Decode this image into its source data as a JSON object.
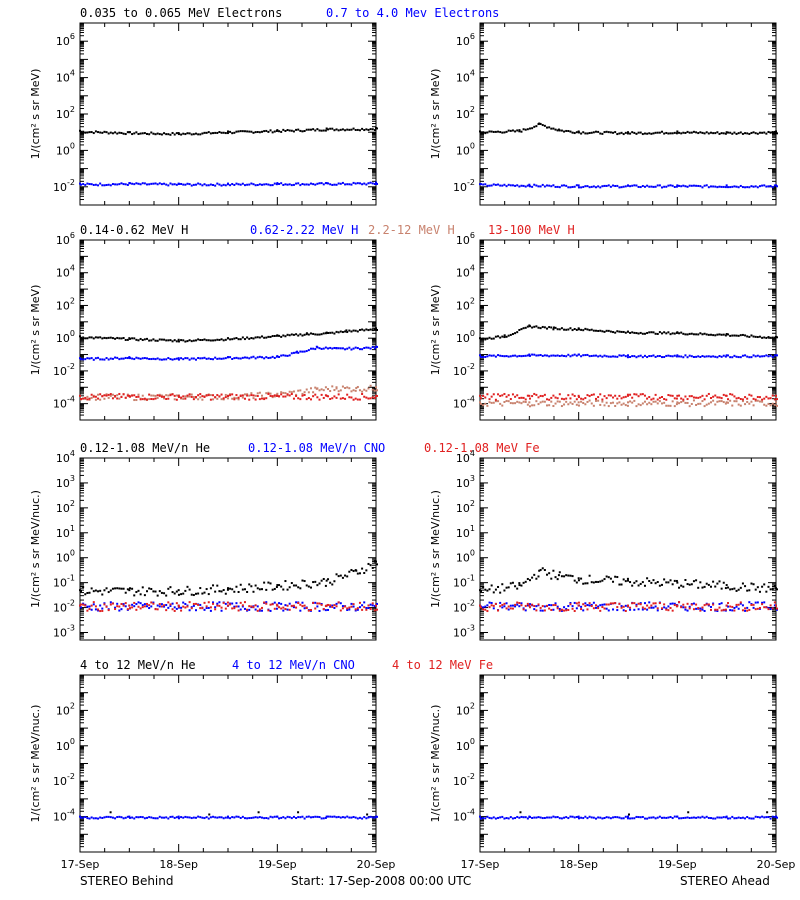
{
  "footer": {
    "left": "STEREO Behind",
    "center": "Start: 17-Sep-2008 00:00 UTC",
    "right": "STEREO Ahead"
  },
  "x_ticks": [
    "17-Sep",
    "18-Sep",
    "19-Sep",
    "20-Sep"
  ],
  "chart_data": [
    {
      "type": "scatter",
      "row": 0,
      "log_y": true,
      "ylabel": "1/(cm² s sr MeV)",
      "ylim": [
        0.001,
        10000000
      ],
      "ytick_exponents": [
        -2,
        0,
        2,
        4,
        6
      ],
      "xlim": [
        0,
        3
      ],
      "legend": [
        {
          "name": "0.035 to 0.065 MeV Electrons",
          "color": "#000000"
        },
        {
          "name": "0.7 to 4.0 Mev Electrons",
          "color": "#0000ff"
        }
      ],
      "panels": {
        "behind": {
          "series": [
            {
              "name": "0.035 to 0.065 MeV Electrons",
              "color": "#000000",
              "x": [
                0,
                0.5,
                1,
                1.5,
                2,
                2.5,
                3
              ],
              "y": [
                12,
                10,
                9,
                11,
                13,
                16,
                17
              ]
            },
            {
              "name": "0.7 to 4.0 Mev Electrons",
              "color": "#0000ff",
              "x": [
                0,
                0.5,
                1,
                1.5,
                2,
                2.5,
                3
              ],
              "y": [
                0.015,
                0.016,
                0.015,
                0.015,
                0.016,
                0.016,
                0.017
              ]
            }
          ]
        },
        "ahead": {
          "series": [
            {
              "name": "0.035 to 0.065 MeV Electrons",
              "color": "#000000",
              "x": [
                0,
                0.4,
                0.6,
                0.8,
                1,
                1.5,
                2,
                2.5,
                3
              ],
              "y": [
                11,
                13,
                30,
                14,
                11,
                10,
                11,
                10,
                11
              ]
            },
            {
              "name": "0.7 to 4.0 Mev Electrons",
              "color": "#0000ff",
              "x": [
                0,
                0.5,
                1,
                1.5,
                2,
                2.5,
                3
              ],
              "y": [
                0.014,
                0.013,
                0.012,
                0.012,
                0.012,
                0.012,
                0.012
              ]
            }
          ]
        }
      }
    },
    {
      "type": "scatter",
      "row": 1,
      "log_y": true,
      "ylabel": "1/(cm² s sr MeV)",
      "ylim": [
        1e-05,
        1000000
      ],
      "ytick_exponents": [
        -4,
        -2,
        0,
        2,
        4,
        6
      ],
      "xlim": [
        0,
        3
      ],
      "legend": [
        {
          "name": "0.14-0.62 MeV H",
          "color": "#000000"
        },
        {
          "name": "0.62-2.22 MeV H",
          "color": "#0000ff"
        },
        {
          "name": "2.2-12 MeV H",
          "color": "#c8826e"
        },
        {
          "name": "13-100 MeV H",
          "color": "#e02020"
        }
      ],
      "panels": {
        "behind": {
          "series": [
            {
              "name": "0.14-0.62 MeV H",
              "color": "#000000",
              "x": [
                0,
                0.5,
                1,
                1.5,
                2,
                2.3,
                2.5,
                2.7,
                3
              ],
              "y": [
                1.3,
                1.0,
                0.8,
                1.0,
                1.5,
                2.0,
                2.2,
                3.0,
                4.0
              ]
            },
            {
              "name": "0.62-2.22 MeV H",
              "color": "#0000ff",
              "x": [
                0,
                0.5,
                1,
                1.5,
                2,
                2.2,
                2.4,
                2.6,
                3
              ],
              "y": [
                0.06,
                0.07,
                0.06,
                0.07,
                0.08,
                0.15,
                0.3,
                0.25,
                0.3
              ]
            },
            {
              "name": "2.2-12 MeV H",
              "color": "#c8826e",
              "x": [
                0,
                0.5,
                1,
                1.5,
                2,
                2.4,
                2.6,
                2.8,
                3
              ],
              "y": [
                0.0003,
                0.00028,
                0.0003,
                0.0003,
                0.0004,
                0.0008,
                0.001,
                0.0009,
                0.001
              ]
            },
            {
              "name": "13-100 MeV H",
              "color": "#e02020",
              "x": [
                0,
                0.5,
                1,
                1.5,
                2,
                2.5,
                3
              ],
              "y": [
                0.0003,
                0.0003,
                0.0003,
                0.0003,
                0.0003,
                0.0003,
                0.0003
              ]
            }
          ]
        },
        "ahead": {
          "series": [
            {
              "name": "0.14-0.62 MeV H",
              "color": "#000000",
              "x": [
                0,
                0.25,
                0.5,
                0.75,
                1,
                1.5,
                2,
                2.5,
                3
              ],
              "y": [
                1.0,
                1.5,
                6.0,
                4.5,
                4.0,
                2.5,
                2.3,
                1.8,
                1.2
              ]
            },
            {
              "name": "0.62-2.22 MeV H",
              "color": "#0000ff",
              "x": [
                0,
                0.5,
                1,
                1.5,
                2,
                2.5,
                3
              ],
              "y": [
                0.09,
                0.1,
                0.1,
                0.09,
                0.09,
                0.09,
                0.09
              ]
            },
            {
              "name": "2.2-12 MeV H",
              "color": "#c8826e",
              "x": [
                0,
                0.5,
                1,
                1.5,
                2,
                2.5,
                3
              ],
              "y": [
                0.00012,
                0.00012,
                0.00012,
                0.00012,
                0.00012,
                0.00012,
                0.00012
              ]
            },
            {
              "name": "13-100 MeV H",
              "color": "#e02020",
              "x": [
                0,
                0.5,
                1,
                1.5,
                2,
                2.5,
                3
              ],
              "y": [
                0.0003,
                0.0003,
                0.0003,
                0.0003,
                0.0003,
                0.0003,
                0.0003
              ]
            }
          ]
        }
      }
    },
    {
      "type": "scatter",
      "row": 2,
      "log_y": true,
      "ylabel": "1/(cm² s sr MeV/nuc.)",
      "ylim": [
        0.0005,
        10000
      ],
      "ytick_exponents": [
        -3,
        -2,
        -1,
        0,
        1,
        2,
        3,
        4
      ],
      "xlim": [
        0,
        3
      ],
      "legend": [
        {
          "name": "0.12-1.08 MeV/n He",
          "color": "#000000"
        },
        {
          "name": "0.12-1.08 MeV/n CNO",
          "color": "#0000ff"
        },
        {
          "name": "0.12-1.08 MeV Fe",
          "color": "#e02020"
        }
      ],
      "panels": {
        "behind": {
          "series": [
            {
              "name": "0.12-1.08 MeV/n He",
              "color": "#000000",
              "x": [
                0,
                0.5,
                1,
                1.5,
                2,
                2.5,
                2.8,
                3
              ],
              "y": [
                0.05,
                0.05,
                0.05,
                0.06,
                0.08,
                0.12,
                0.3,
                0.7
              ]
            },
            {
              "name": "0.12-1.08 MeV/n CNO",
              "color": "#0000ff",
              "x": [
                0,
                0.5,
                1,
                1.5,
                2,
                2.5,
                3
              ],
              "y": [
                0.012,
                0.012,
                0.012,
                0.012,
                0.012,
                0.012,
                0.012
              ]
            },
            {
              "name": "0.12-1.08 MeV Fe",
              "color": "#e02020",
              "x": [
                0,
                0.5,
                1,
                1.5,
                2,
                2.5,
                3
              ],
              "y": [
                0.012,
                0.012,
                0.012,
                0.012,
                0.012,
                0.012,
                0.012
              ]
            }
          ]
        },
        "ahead": {
          "series": [
            {
              "name": "0.12-1.08 MeV/n He",
              "color": "#000000",
              "x": [
                0,
                0.4,
                0.6,
                0.8,
                1,
                1.5,
                2,
                2.5,
                3
              ],
              "y": [
                0.05,
                0.08,
                0.3,
                0.2,
                0.15,
                0.12,
                0.1,
                0.08,
                0.06
              ]
            },
            {
              "name": "0.12-1.08 MeV/n CNO",
              "color": "#0000ff",
              "x": [
                0,
                0.5,
                1,
                1.5,
                2,
                2.5,
                3
              ],
              "y": [
                0.012,
                0.012,
                0.012,
                0.012,
                0.012,
                0.012,
                0.012
              ]
            },
            {
              "name": "0.12-1.08 MeV Fe",
              "color": "#e02020",
              "x": [
                0,
                0.5,
                1,
                1.5,
                2,
                2.5,
                3
              ],
              "y": [
                0.012,
                0.012,
                0.012,
                0.012,
                0.012,
                0.012,
                0.012
              ]
            }
          ]
        }
      }
    },
    {
      "type": "scatter",
      "row": 3,
      "log_y": true,
      "ylabel": "1/(cm² s sr MeV/nuc.)",
      "ylim": [
        1e-06,
        10000
      ],
      "ytick_exponents": [
        -4,
        -2,
        0,
        2
      ],
      "xlim": [
        0,
        3
      ],
      "legend": [
        {
          "name": "4 to 12 MeV/n He",
          "color": "#000000"
        },
        {
          "name": "4 to 12 MeV/n CNO",
          "color": "#0000ff"
        },
        {
          "name": "4 to 12 MeV Fe",
          "color": "#e02020"
        }
      ],
      "panels": {
        "behind": {
          "series": [
            {
              "name": "4 to 12 MeV/n He",
              "color": "#000000",
              "x": [
                0.3,
                1.3,
                1.8,
                2.2,
                2.9
              ],
              "y": [
                0.0002,
                0.00015,
                0.0002,
                0.0002,
                0.00015
              ]
            },
            {
              "name": "4 to 12 MeV/n CNO",
              "color": "#0000ff",
              "x": [
                0,
                0.5,
                1,
                1.5,
                2,
                2.5,
                3
              ],
              "y": [
                0.0001,
                0.0001,
                0.0001,
                0.0001,
                0.0001,
                0.0001,
                0.0001
              ]
            },
            {
              "name": "4 to 12 MeV Fe",
              "color": "#e02020",
              "x": [],
              "y": []
            }
          ]
        },
        "ahead": {
          "series": [
            {
              "name": "4 to 12 MeV/n He",
              "color": "#000000",
              "x": [
                0.4,
                1.5,
                2.1,
                2.9
              ],
              "y": [
                0.0002,
                0.00015,
                0.0002,
                0.0002
              ]
            },
            {
              "name": "4 to 12 MeV/n CNO",
              "color": "#0000ff",
              "x": [
                0,
                0.5,
                1,
                1.5,
                2,
                2.5,
                3
              ],
              "y": [
                0.0001,
                0.0001,
                0.0001,
                0.0001,
                0.0001,
                0.0001,
                0.0001
              ]
            },
            {
              "name": "4 to 12 MeV Fe",
              "color": "#e02020",
              "x": [],
              "y": []
            }
          ]
        }
      }
    }
  ]
}
